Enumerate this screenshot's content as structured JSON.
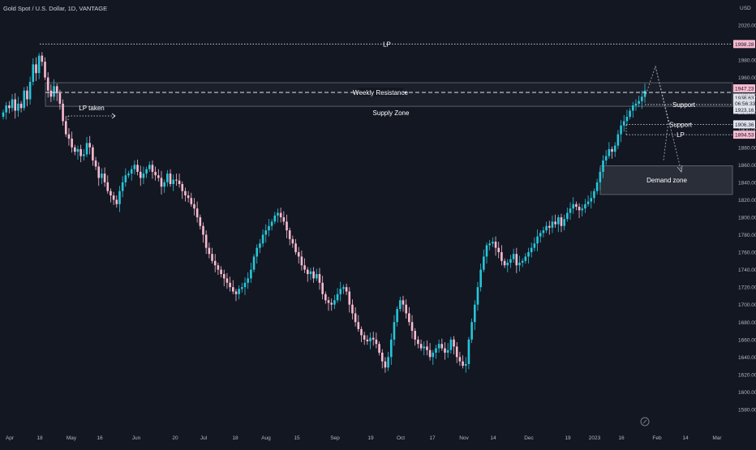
{
  "header": {
    "title": "Gold Spot / U.S. Dollar, 1D, VANTAGE",
    "currency": "USD"
  },
  "colors": {
    "background": "#131722",
    "up": "#26c6da",
    "down": "#f8bbd0",
    "text": "#d1d4dc",
    "axis_text": "#b2b5be",
    "line": "#e0e3eb",
    "zone_fill": "#2a2e39",
    "zone_border": "#6b6f7a"
  },
  "chart_data": {
    "type": "candlestick",
    "title": "Gold Spot / U.S. Dollar, 1D, VANTAGE",
    "ylabel": "USD",
    "ylim": [
      1578,
      2036
    ],
    "grid": false,
    "x_ticks": [
      "Apr",
      "18",
      "May",
      "16",
      "Jun",
      "20",
      "Jul",
      "18",
      "Aug",
      "15",
      "Sep",
      "19",
      "Oct",
      "17",
      "Nov",
      "14",
      "Dec",
      "19",
      "2023",
      "16",
      "Feb",
      "14",
      "Mar"
    ],
    "y_ticks": [
      "2020.00",
      "1980.00",
      "1960.00",
      "1940.00",
      "1920.00",
      "1900.00",
      "1880.00",
      "1860.00",
      "1840.00",
      "1820.00",
      "1800.00",
      "1780.00",
      "1760.00",
      "1740.00",
      "1720.00",
      "1700.00",
      "1680.00",
      "1660.00",
      "1640.00",
      "1620.00",
      "1600.00",
      "1580.00"
    ],
    "candle_closes": [
      1920,
      1928,
      1925,
      1935,
      1922,
      1930,
      1925,
      1945,
      1935,
      1955,
      1975,
      1965,
      1985,
      1978,
      1960,
      1945,
      1938,
      1950,
      1942,
      1930,
      1910,
      1895,
      1890,
      1880,
      1875,
      1878,
      1870,
      1872,
      1885,
      1880,
      1865,
      1858,
      1845,
      1850,
      1840,
      1830,
      1825,
      1820,
      1815,
      1830,
      1840,
      1848,
      1850,
      1855,
      1860,
      1852,
      1845,
      1850,
      1855,
      1860,
      1852,
      1848,
      1845,
      1835,
      1840,
      1850,
      1838,
      1843,
      1842,
      1838,
      1830,
      1825,
      1822,
      1815,
      1810,
      1800,
      1790,
      1780,
      1765,
      1758,
      1750,
      1745,
      1740,
      1735,
      1730,
      1725,
      1720,
      1715,
      1712,
      1718,
      1720,
      1725,
      1730,
      1740,
      1755,
      1765,
      1770,
      1780,
      1785,
      1790,
      1795,
      1802,
      1805,
      1800,
      1795,
      1785,
      1775,
      1770,
      1760,
      1755,
      1745,
      1740,
      1735,
      1738,
      1730,
      1735,
      1725,
      1712,
      1705,
      1702,
      1700,
      1705,
      1712,
      1718,
      1720,
      1715,
      1700,
      1690,
      1680,
      1672,
      1665,
      1660,
      1658,
      1662,
      1660,
      1655,
      1645,
      1635,
      1628,
      1640,
      1660,
      1680,
      1695,
      1705,
      1700,
      1690,
      1680,
      1670,
      1660,
      1655,
      1650,
      1652,
      1648,
      1640,
      1645,
      1650,
      1655,
      1650,
      1645,
      1648,
      1660,
      1652,
      1640,
      1635,
      1630,
      1632,
      1660,
      1680,
      1700,
      1720,
      1740,
      1755,
      1768,
      1770,
      1772,
      1765,
      1760,
      1750,
      1745,
      1748,
      1752,
      1758,
      1745,
      1748,
      1750,
      1755,
      1760,
      1765,
      1770,
      1778,
      1782,
      1785,
      1790,
      1788,
      1795,
      1792,
      1800,
      1790,
      1798,
      1805,
      1810,
      1815,
      1812,
      1808,
      1810,
      1815,
      1818,
      1822,
      1830,
      1840,
      1852,
      1865,
      1870,
      1878,
      1875,
      1882,
      1895,
      1905,
      1910,
      1915,
      1922,
      1928,
      1930,
      1933,
      1938,
      1945
    ],
    "candle_note": "daily OHLC candles; closes estimated from price axis",
    "levels": [
      {
        "label": "LP",
        "price": 1998.28,
        "tag": "1998.28"
      },
      {
        "label": "Weekly Resistance",
        "price": 1942.82
      },
      {
        "label": "Support",
        "price": 1929.0
      },
      {
        "label": "Support",
        "price": 1906.36,
        "tag": "1906.36"
      },
      {
        "label": "LP",
        "price": 1894.53,
        "tag": "1894.53"
      }
    ],
    "zones": [
      {
        "label": "Supply Zone",
        "from": 1927,
        "to": 1954
      },
      {
        "label": "Demand zone",
        "from": 1826,
        "to": 1859
      }
    ],
    "price_tags": [
      {
        "value": "1947.23",
        "kind": "current"
      },
      {
        "value": "1936.63",
        "kind": "info"
      },
      {
        "value": "06:56:33",
        "kind": "info"
      },
      {
        "value": "1923.16",
        "kind": "info"
      }
    ],
    "annotations": [
      {
        "label": "LP taken"
      }
    ]
  }
}
